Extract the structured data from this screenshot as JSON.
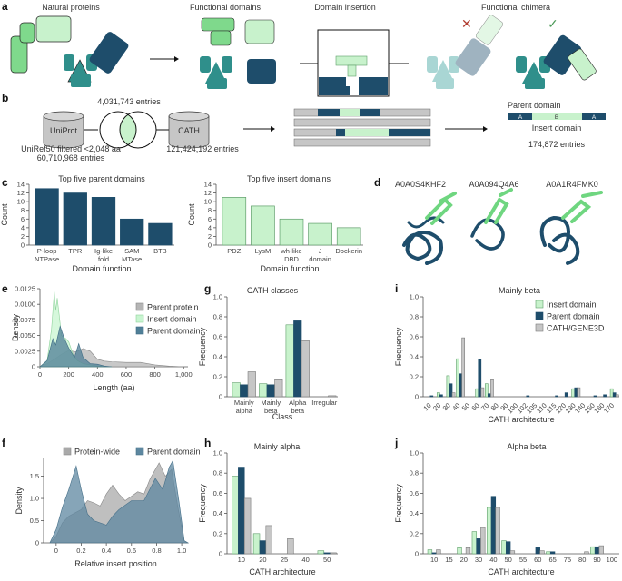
{
  "panel_letters": {
    "a": "a",
    "b": "b",
    "c": "c",
    "d": "d",
    "e": "e",
    "f": "f",
    "g": "g",
    "h": "h",
    "i": "i",
    "j": "j"
  },
  "panel_a": {
    "natural_proteins": "Natural proteins",
    "functional_domains": "Functional domains",
    "domain_insertion": "Domain insertion",
    "functional_chimera": "Functional chimera"
  },
  "panel_b": {
    "uniprot": "UniProt",
    "cath": "CATH",
    "overlap_entries": "4,031,743 entries",
    "uniref_filter": "UniRef50 filtered <2,048 aa",
    "uniref_entries": "60,710,968 entries",
    "cath_entries": "121,424,192 entries",
    "parent_domain": "Parent domain",
    "insert_domain": "Insert domain",
    "seg_a1": "A",
    "seg_b": "B",
    "seg_a2": "A",
    "result_entries": "174,872 entries"
  },
  "panel_d": {
    "structures": [
      "A0A0S4KHF2",
      "A0A094Q4A6",
      "A0A1R4FMK0"
    ]
  },
  "colors": {
    "insert": "#c8f2cc",
    "insert_stroke": "#5f9e6a",
    "parent": "#1e4d6b",
    "cath": "#c6c6c6",
    "cath_stroke": "#7a7a7a",
    "teal": "#2f8f8b",
    "green": "#7fd98c"
  },
  "chart_data": [
    {
      "id": "c1",
      "type": "bar",
      "title": "Top five parent domains",
      "xlabel": "Domain function",
      "ylabel": "Count",
      "ylim": [
        0,
        14
      ],
      "categories": [
        "P-loop\nNTPase",
        "TPR",
        "Ig-like\nfold",
        "SAM\nMTase",
        "BTB"
      ],
      "values": [
        13,
        12,
        11,
        6,
        5
      ],
      "yticks": [
        "0",
        "2",
        "4",
        "6",
        "8",
        "10",
        "12",
        "14"
      ]
    },
    {
      "id": "c2",
      "type": "bar",
      "title": "Top five insert domains",
      "xlabel": "Domain function",
      "ylabel": "Count",
      "ylim": [
        0,
        14
      ],
      "categories": [
        "PDZ",
        "LysM",
        "wh-like\nDBD",
        "J\ndomain",
        "Dockerin"
      ],
      "values": [
        11,
        9,
        6,
        5,
        4
      ],
      "yticks": [
        "0",
        "2",
        "4",
        "6",
        "8",
        "10",
        "12",
        "14"
      ]
    },
    {
      "id": "e",
      "type": "area",
      "xlabel": "Length (aa)",
      "ylabel": "Density",
      "xlim": [
        0,
        1030
      ],
      "ylim": [
        0,
        0.0125
      ],
      "xticks": [
        [
          0,
          "0"
        ],
        [
          200,
          "200"
        ],
        [
          400,
          "400"
        ],
        [
          600,
          "600"
        ],
        [
          800,
          "800"
        ],
        [
          1000,
          "1,000"
        ]
      ],
      "yticks": [
        [
          0,
          "0"
        ],
        [
          0.0025,
          "0.0025"
        ],
        [
          0.005,
          "0.0050"
        ],
        [
          0.0075,
          "0.0075"
        ],
        [
          0.01,
          "0.0100"
        ],
        [
          0.0125,
          "0.0125"
        ]
      ],
      "series": [
        {
          "name": "Parent protein",
          "points": [
            [
              0,
              0
            ],
            [
              50,
              0.0005
            ],
            [
              100,
              0.0012
            ],
            [
              150,
              0.002
            ],
            [
              200,
              0.0026
            ],
            [
              250,
              0.0024
            ],
            [
              300,
              0.0029
            ],
            [
              350,
              0.0025
            ],
            [
              400,
              0.0012
            ],
            [
              450,
              0.0009
            ],
            [
              500,
              0.0008
            ],
            [
              600,
              0.0007
            ],
            [
              700,
              0.0007
            ],
            [
              800,
              0.0003
            ],
            [
              900,
              0.0001
            ],
            [
              1000,
              0
            ]
          ]
        },
        {
          "name": "Insert domain",
          "points": [
            [
              0,
              0
            ],
            [
              50,
              0.001
            ],
            [
              80,
              0.006
            ],
            [
              100,
              0.012
            ],
            [
              110,
              0.009
            ],
            [
              120,
              0.011
            ],
            [
              135,
              0.008
            ],
            [
              150,
              0.005
            ],
            [
              180,
              0.0045
            ],
            [
              200,
              0.004
            ],
            [
              230,
              0.002
            ],
            [
              260,
              0.001
            ],
            [
              300,
              0.0005
            ],
            [
              400,
              0.0001
            ],
            [
              500,
              0
            ]
          ]
        },
        {
          "name": "Parent domain",
          "points": [
            [
              0,
              0
            ],
            [
              50,
              0.001
            ],
            [
              90,
              0.0045
            ],
            [
              110,
              0.0035
            ],
            [
              140,
              0.0065
            ],
            [
              170,
              0.0045
            ],
            [
              200,
              0.003
            ],
            [
              240,
              0.0015
            ],
            [
              270,
              0.0037
            ],
            [
              300,
              0.0015
            ],
            [
              350,
              0.0005
            ],
            [
              400,
              0.0004
            ],
            [
              450,
              0.0001
            ],
            [
              500,
              0
            ]
          ]
        }
      ]
    },
    {
      "id": "f",
      "type": "area",
      "xlabel": "Relative insert position",
      "ylabel": "Density",
      "xlim": [
        -0.1,
        1.05
      ],
      "ylim": [
        0,
        1.9
      ],
      "xticks": [
        [
          0,
          "0"
        ],
        [
          0.2,
          "0.2"
        ],
        [
          0.4,
          "0.4"
        ],
        [
          0.6,
          "0.6"
        ],
        [
          0.8,
          "0.8"
        ],
        [
          1.0,
          "1.0"
        ]
      ],
      "yticks": [
        [
          0,
          "0"
        ],
        [
          0.5,
          "0.5"
        ],
        [
          1.0,
          "1.0"
        ],
        [
          1.5,
          "1.5"
        ]
      ],
      "series": [
        {
          "name": "Protein-wide",
          "points": [
            [
              -0.05,
              0
            ],
            [
              0,
              0.15
            ],
            [
              0.05,
              0.45
            ],
            [
              0.1,
              0.6
            ],
            [
              0.2,
              0.75
            ],
            [
              0.25,
              0.95
            ],
            [
              0.3,
              0.9
            ],
            [
              0.35,
              0.83
            ],
            [
              0.4,
              1.1
            ],
            [
              0.45,
              1.3
            ],
            [
              0.5,
              1.1
            ],
            [
              0.55,
              0.95
            ],
            [
              0.6,
              1.05
            ],
            [
              0.65,
              1.15
            ],
            [
              0.7,
              1.1
            ],
            [
              0.75,
              1.45
            ],
            [
              0.82,
              1.8
            ],
            [
              0.87,
              1.5
            ],
            [
              0.92,
              1.65
            ],
            [
              0.97,
              0.8
            ],
            [
              1.02,
              0.05
            ],
            [
              1.05,
              0
            ]
          ]
        },
        {
          "name": "Parent domain",
          "points": [
            [
              -0.05,
              0
            ],
            [
              0,
              0.3
            ],
            [
              0.05,
              0.8
            ],
            [
              0.1,
              1.2
            ],
            [
              0.16,
              1.73
            ],
            [
              0.2,
              1.2
            ],
            [
              0.25,
              0.65
            ],
            [
              0.3,
              0.5
            ],
            [
              0.4,
              0.4
            ],
            [
              0.45,
              0.6
            ],
            [
              0.5,
              0.75
            ],
            [
              0.6,
              0.95
            ],
            [
              0.7,
              0.95
            ],
            [
              0.79,
              1.45
            ],
            [
              0.85,
              1.2
            ],
            [
              0.9,
              1.7
            ],
            [
              0.93,
              1.85
            ],
            [
              0.98,
              0.9
            ],
            [
              1.02,
              0.05
            ],
            [
              1.05,
              0
            ]
          ]
        }
      ]
    },
    {
      "id": "g",
      "type": "bar",
      "title": "CATH classes",
      "xlabel": "Class",
      "ylabel": "Frequency",
      "ylim": [
        0,
        1
      ],
      "yticks": [
        "0",
        "0.2",
        "0.4",
        "0.6",
        "0.8",
        "1.0"
      ],
      "categories": [
        "Mainly\nalpha",
        "Mainly\nbeta",
        "Alpha\nbeta",
        "Irregular"
      ],
      "series": [
        {
          "name": "Insert domain",
          "values": [
            0.14,
            0.13,
            0.72,
            0.0
          ]
        },
        {
          "name": "Parent domain",
          "values": [
            0.12,
            0.12,
            0.76,
            0.0
          ]
        },
        {
          "name": "CATH/GENE3D",
          "values": [
            0.25,
            0.17,
            0.56,
            0.01
          ]
        }
      ]
    },
    {
      "id": "i",
      "type": "bar",
      "title": "Mainly beta",
      "xlabel": "CATH architecture",
      "ylabel": "Frequency",
      "ylim": [
        0,
        1
      ],
      "rotate": true,
      "yticks": [
        "0",
        "0.2",
        "0.4",
        "0.6",
        "0.8",
        "1.0"
      ],
      "legend": [
        "Insert domain",
        "Parent domain",
        "CATH/GENE3D"
      ],
      "categories": [
        "10",
        "20",
        "30",
        "40",
        "50",
        "60",
        "70",
        "80",
        "90",
        "100",
        "102",
        "105",
        "110",
        "115",
        "120",
        "130",
        "140",
        "150",
        "160",
        "170"
      ],
      "series": [
        {
          "name": "Insert domain",
          "values": [
            0,
            0.04,
            0.21,
            0.38,
            0,
            0.08,
            0.13,
            0,
            0,
            0,
            0,
            0,
            0,
            0,
            0,
            0.08,
            0,
            0,
            0,
            0.08
          ]
        },
        {
          "name": "Parent domain",
          "values": [
            0.01,
            0.02,
            0.13,
            0.23,
            0,
            0.37,
            0.03,
            0,
            0,
            0,
            0.01,
            0,
            0,
            0.01,
            0.04,
            0.09,
            0,
            0.01,
            0.02,
            0.04
          ]
        },
        {
          "name": "CATH/GENE3D",
          "values": [
            0,
            0,
            0.04,
            0.59,
            0,
            0.09,
            0.17,
            0,
            0,
            0,
            0,
            0,
            0,
            0,
            0,
            0.09,
            0,
            0,
            0,
            0.02
          ]
        }
      ]
    },
    {
      "id": "h",
      "type": "bar",
      "title": "Mainly alpha",
      "xlabel": "CATH architecture",
      "ylabel": "Frequency",
      "ylim": [
        0,
        1
      ],
      "yticks": [
        "0",
        "0.2",
        "0.4",
        "0.6",
        "0.8",
        "1.0"
      ],
      "categories": [
        "10",
        "20",
        "25",
        "40",
        "50"
      ],
      "series": [
        {
          "name": "Insert domain",
          "values": [
            0.77,
            0.2,
            0,
            0,
            0.03
          ]
        },
        {
          "name": "Parent domain",
          "values": [
            0.86,
            0.13,
            0,
            0,
            0.01
          ]
        },
        {
          "name": "CATH/GENE3D",
          "values": [
            0.55,
            0.28,
            0.15,
            0,
            0.01
          ]
        }
      ]
    },
    {
      "id": "j",
      "type": "bar",
      "title": "Alpha beta",
      "xlabel": "CATH architecture",
      "ylabel": "Frequency",
      "ylim": [
        0,
        1
      ],
      "yticks": [
        "0",
        "0.2",
        "0.4",
        "0.6",
        "0.8",
        "1.0"
      ],
      "categories": [
        "10",
        "15",
        "20",
        "30",
        "40",
        "50",
        "55",
        "60",
        "65",
        "75",
        "80",
        "90",
        "100"
      ],
      "series": [
        {
          "name": "Insert domain",
          "values": [
            0.04,
            0,
            0.06,
            0.22,
            0.46,
            0.13,
            0,
            0,
            0.02,
            0,
            0,
            0.07,
            0
          ]
        },
        {
          "name": "Parent domain",
          "values": [
            0.01,
            0,
            0,
            0.15,
            0.57,
            0.12,
            0,
            0.06,
            0.02,
            0,
            0,
            0.07,
            0
          ]
        },
        {
          "name": "CATH/GENE3D",
          "values": [
            0.04,
            0,
            0.06,
            0.26,
            0.46,
            0.03,
            0,
            0.03,
            0,
            0,
            0.02,
            0.08,
            0
          ]
        }
      ]
    }
  ]
}
